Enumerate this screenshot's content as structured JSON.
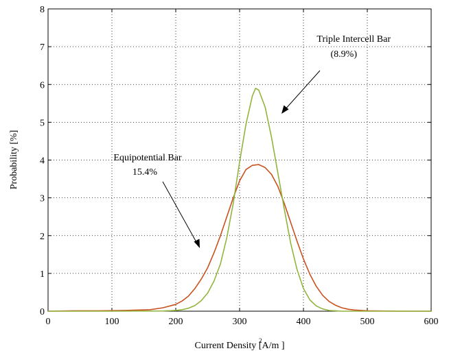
{
  "chart_data": {
    "type": "line",
    "xlabel": "Current Density [A/m ]",
    "ylabel": "Probability [%]",
    "xlim": [
      0,
      600
    ],
    "ylim": [
      0,
      8
    ],
    "xticks": [
      0,
      100,
      200,
      300,
      400,
      500,
      600
    ],
    "yticks": [
      0,
      1,
      2,
      3,
      4,
      5,
      6,
      7,
      8
    ],
    "grid": true,
    "series": [
      {
        "color": "#c8501e",
        "x": [
          0,
          40,
          80,
          120,
          160,
          180,
          200,
          210,
          220,
          230,
          240,
          250,
          260,
          270,
          280,
          290,
          300,
          310,
          320,
          330,
          340,
          350,
          360,
          370,
          380,
          390,
          400,
          410,
          420,
          430,
          440,
          450,
          460,
          470,
          480,
          500,
          550,
          600
        ],
        "y": [
          0,
          0.01,
          0.01,
          0.02,
          0.04,
          0.09,
          0.18,
          0.27,
          0.4,
          0.6,
          0.85,
          1.15,
          1.55,
          2.0,
          2.5,
          3.0,
          3.45,
          3.75,
          3.86,
          3.88,
          3.8,
          3.62,
          3.3,
          2.85,
          2.35,
          1.85,
          1.38,
          0.98,
          0.66,
          0.42,
          0.26,
          0.16,
          0.09,
          0.05,
          0.03,
          0.01,
          0.0,
          0.0
        ]
      },
      {
        "color": "#92b43c",
        "x": [
          0,
          100,
          180,
          200,
          210,
          220,
          230,
          240,
          250,
          260,
          270,
          280,
          290,
          300,
          310,
          320,
          325,
          330,
          340,
          350,
          360,
          370,
          380,
          390,
          400,
          410,
          420,
          430,
          440,
          450,
          460,
          480,
          500,
          600
        ],
        "y": [
          0,
          0,
          0.005,
          0.02,
          0.04,
          0.08,
          0.15,
          0.28,
          0.48,
          0.8,
          1.25,
          1.95,
          2.85,
          3.95,
          4.95,
          5.7,
          5.9,
          5.85,
          5.4,
          4.6,
          3.65,
          2.7,
          1.8,
          1.1,
          0.6,
          0.3,
          0.14,
          0.06,
          0.02,
          0.01,
          0.0,
          0.0,
          0.0,
          0.0
        ]
      }
    ],
    "annotations": [
      {
        "id": "triple",
        "lines": [
          "Triple Intercell Bar",
          "(8.9%)"
        ]
      },
      {
        "id": "equip",
        "lines": [
          "Equipotential Bar",
          "15.4%"
        ]
      }
    ]
  }
}
